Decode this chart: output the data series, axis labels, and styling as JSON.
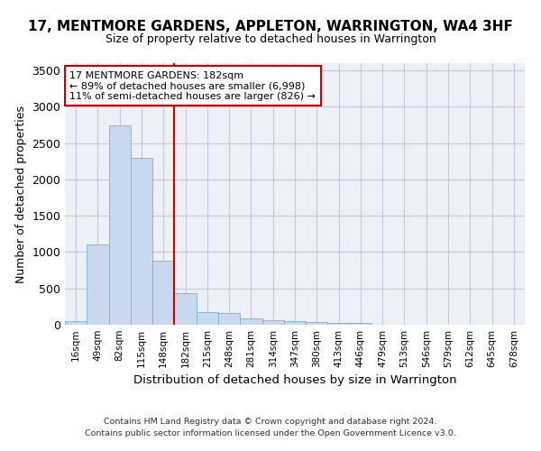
{
  "title": "17, MENTMORE GARDENS, APPLETON, WARRINGTON, WA4 3HF",
  "subtitle": "Size of property relative to detached houses in Warrington",
  "xlabel": "Distribution of detached houses by size in Warrington",
  "ylabel": "Number of detached properties",
  "bar_color": "#c8d8ee",
  "bar_edge_color": "#7aafd4",
  "grid_color": "#c8c8d8",
  "bg_color": "#eef0f8",
  "vline_color": "#cc0000",
  "annotation_text": "17 MENTMORE GARDENS: 182sqm\n← 89% of detached houses are smaller (6,998)\n11% of semi-detached houses are larger (826) →",
  "annotation_box_color": "white",
  "annotation_box_edge": "#cc0000",
  "categories": [
    "16sqm",
    "49sqm",
    "82sqm",
    "115sqm",
    "148sqm",
    "182sqm",
    "215sqm",
    "248sqm",
    "281sqm",
    "314sqm",
    "347sqm",
    "380sqm",
    "413sqm",
    "446sqm",
    "479sqm",
    "513sqm",
    "546sqm",
    "579sqm",
    "612sqm",
    "645sqm",
    "678sqm"
  ],
  "values": [
    55,
    1110,
    2740,
    2295,
    880,
    430,
    170,
    165,
    90,
    60,
    50,
    35,
    25,
    20,
    0,
    0,
    0,
    0,
    0,
    0,
    0
  ],
  "ylim": [
    0,
    3600
  ],
  "yticks": [
    0,
    500,
    1000,
    1500,
    2000,
    2500,
    3000,
    3500
  ],
  "vline_idx": 5,
  "footnote1": "Contains HM Land Registry data © Crown copyright and database right 2024.",
  "footnote2": "Contains public sector information licensed under the Open Government Licence v3.0."
}
